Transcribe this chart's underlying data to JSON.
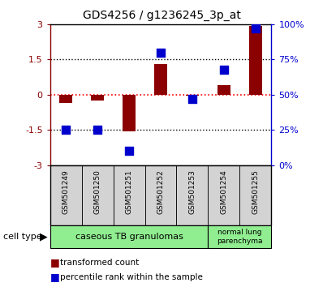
{
  "title": "GDS4256 / g1236245_3p_at",
  "samples": [
    "GSM501249",
    "GSM501250",
    "GSM501251",
    "GSM501252",
    "GSM501253",
    "GSM501254",
    "GSM501255"
  ],
  "transformed_count": [
    -0.35,
    -0.25,
    -1.55,
    1.3,
    -0.05,
    0.4,
    2.95
  ],
  "percentile_rank": [
    25,
    25,
    10,
    80,
    47,
    68,
    97
  ],
  "ylim_left": [
    -3,
    3
  ],
  "ylim_right": [
    0,
    100
  ],
  "yticks_left": [
    -3,
    -1.5,
    0,
    1.5,
    3
  ],
  "yticks_right": [
    0,
    25,
    50,
    75,
    100
  ],
  "ytick_labels_left": [
    "-3",
    "-1.5",
    "0",
    "1.5",
    "3"
  ],
  "ytick_labels_right": [
    "0%",
    "25%",
    "50%",
    "75%",
    "100%"
  ],
  "bar_color": "#8B0000",
  "dot_color": "#0000CD",
  "cell_type_label": "cell type",
  "legend_red": "transformed count",
  "legend_blue": "percentile rank within the sample",
  "bg_color": "#ffffff",
  "plot_bg": "#ffffff",
  "tick_area_color": "#d3d3d3",
  "left_axis_color": "#8B0000",
  "right_axis_color": "#0000CD",
  "group1_label": "caseous TB granulomas",
  "group1_count": 5,
  "group2_label": "normal lung\nparenchyma",
  "group2_count": 2,
  "group_color": "#90EE90"
}
